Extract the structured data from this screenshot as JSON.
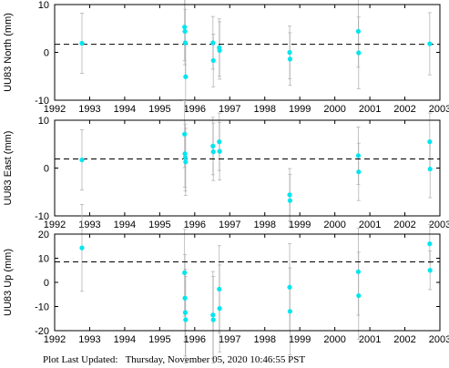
{
  "footer": {
    "label": "Plot Last Updated:",
    "timestamp": "Thursday, November 05, 2020 10:46:55 PST"
  },
  "style": {
    "point_color": "#00e5ee",
    "errorbar_color": "#b4b4b4",
    "mean_line_color": "#000000"
  },
  "chart_data": [
    {
      "type": "scatter",
      "ylabel": "UU83 North (mm)",
      "xlim": [
        1992,
        2003
      ],
      "ylim": [
        -10,
        10
      ],
      "xticks": [
        1992,
        1993,
        1994,
        1995,
        1996,
        1997,
        1998,
        1999,
        2000,
        2001,
        2002,
        2003
      ],
      "yticks": [
        -10,
        0,
        10
      ],
      "mean": 1.7,
      "points": [
        {
          "x": 1992.78,
          "y": 1.9,
          "err": 6.3
        },
        {
          "x": 1995.71,
          "y": 5.3,
          "err": 7.0
        },
        {
          "x": 1995.72,
          "y": 4.4,
          "err": 7.0
        },
        {
          "x": 1995.73,
          "y": 2.0,
          "err": 7.0
        },
        {
          "x": 1995.74,
          "y": -5.1,
          "err": 7.0
        },
        {
          "x": 1996.52,
          "y": 2.0,
          "err": 5.5
        },
        {
          "x": 1996.53,
          "y": -1.7,
          "err": 5.5
        },
        {
          "x": 1996.7,
          "y": 1.0,
          "err": 6.0
        },
        {
          "x": 1996.71,
          "y": 0.4,
          "err": 6.0
        },
        {
          "x": 1998.71,
          "y": 0.0,
          "err": 5.5
        },
        {
          "x": 1998.72,
          "y": -1.4,
          "err": 5.5
        },
        {
          "x": 2000.67,
          "y": 4.4,
          "err": 7.5
        },
        {
          "x": 2000.68,
          "y": -0.1,
          "err": 7.5
        },
        {
          "x": 2002.71,
          "y": 1.8,
          "err": 6.5
        }
      ]
    },
    {
      "type": "scatter",
      "ylabel": "UU83 East (mm)",
      "xlim": [
        1992,
        2003
      ],
      "ylim": [
        -10,
        10
      ],
      "xticks": [
        1992,
        1993,
        1994,
        1995,
        1996,
        1997,
        1998,
        1999,
        2000,
        2001,
        2002,
        2003
      ],
      "yticks": [
        -10,
        0,
        10
      ],
      "mean": 1.9,
      "points": [
        {
          "x": 1992.78,
          "y": 1.7,
          "err": 6.3
        },
        {
          "x": 1995.71,
          "y": 7.1,
          "err": 7.0
        },
        {
          "x": 1995.72,
          "y": 3.0,
          "err": 7.0
        },
        {
          "x": 1995.73,
          "y": 2.2,
          "err": 7.0
        },
        {
          "x": 1995.74,
          "y": 1.3,
          "err": 7.0
        },
        {
          "x": 1996.52,
          "y": 4.6,
          "err": 6.0
        },
        {
          "x": 1996.53,
          "y": 3.4,
          "err": 6.0
        },
        {
          "x": 1996.7,
          "y": 5.5,
          "err": 6.0
        },
        {
          "x": 1996.71,
          "y": 3.5,
          "err": 6.0
        },
        {
          "x": 1998.71,
          "y": -5.6,
          "err": 5.5
        },
        {
          "x": 1998.72,
          "y": -6.8,
          "err": 5.5
        },
        {
          "x": 2000.67,
          "y": 2.6,
          "err": 6.0
        },
        {
          "x": 2000.68,
          "y": -0.8,
          "err": 6.0
        },
        {
          "x": 2002.71,
          "y": 5.5,
          "err": 6.0
        },
        {
          "x": 2002.72,
          "y": -0.2,
          "err": 6.0
        }
      ]
    },
    {
      "type": "scatter",
      "ylabel": "UU83 Up (mm)",
      "xlim": [
        1992,
        2003
      ],
      "ylim": [
        -20,
        20
      ],
      "xticks": [
        1992,
        1993,
        1994,
        1995,
        1996,
        1997,
        1998,
        1999,
        2000,
        2001,
        2002,
        2003
      ],
      "yticks": [
        -20,
        -10,
        0,
        10,
        20
      ],
      "mean": 8.5,
      "points": [
        {
          "x": 1992.78,
          "y": 14.3,
          "err": 18.0
        },
        {
          "x": 1995.71,
          "y": 4.0,
          "err": 18.0
        },
        {
          "x": 1995.72,
          "y": -6.5,
          "err": 18.0
        },
        {
          "x": 1995.73,
          "y": -12.5,
          "err": 18.0
        },
        {
          "x": 1995.74,
          "y": -15.5,
          "err": 18.0
        },
        {
          "x": 1996.52,
          "y": -13.5,
          "err": 18.0
        },
        {
          "x": 1996.53,
          "y": -15.5,
          "err": 18.0
        },
        {
          "x": 1996.7,
          "y": -2.8,
          "err": 18.0
        },
        {
          "x": 1996.71,
          "y": -10.8,
          "err": 18.0
        },
        {
          "x": 1998.71,
          "y": -2.0,
          "err": 18.0
        },
        {
          "x": 1998.72,
          "y": -12.0,
          "err": 18.0
        },
        {
          "x": 2000.67,
          "y": 4.4,
          "err": 18.0
        },
        {
          "x": 2000.68,
          "y": -5.5,
          "err": 18.0
        },
        {
          "x": 2002.71,
          "y": 16.0,
          "err": 8.0
        },
        {
          "x": 2002.72,
          "y": 5.0,
          "err": 8.0
        }
      ]
    }
  ]
}
